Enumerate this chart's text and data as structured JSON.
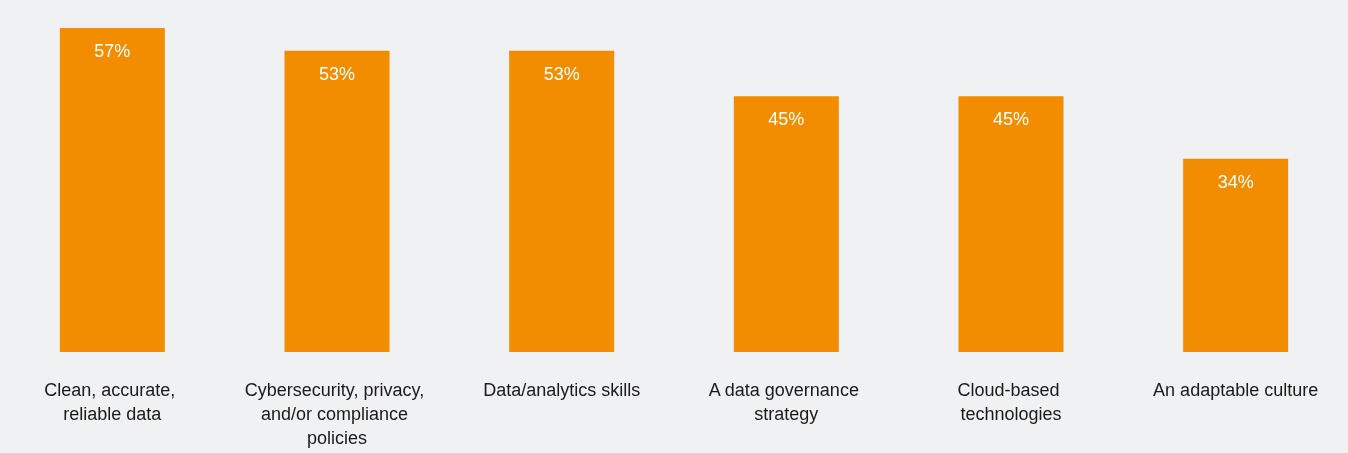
{
  "chart_data": {
    "type": "bar",
    "categories": [
      "Clean, accurate, reliable data",
      "Cybersecurity, privacy, and/or compliance policies",
      "Data/analytics skills",
      "A data governance strategy",
      "Cloud-based technologies",
      "An adaptable culture"
    ],
    "values": [
      57,
      53,
      53,
      45,
      45,
      34
    ],
    "color": "#f28c00",
    "value_labels": [
      "57%",
      "53%",
      "53%",
      "45%",
      "45%",
      "34%"
    ],
    "tick_labels": "x"
  }
}
